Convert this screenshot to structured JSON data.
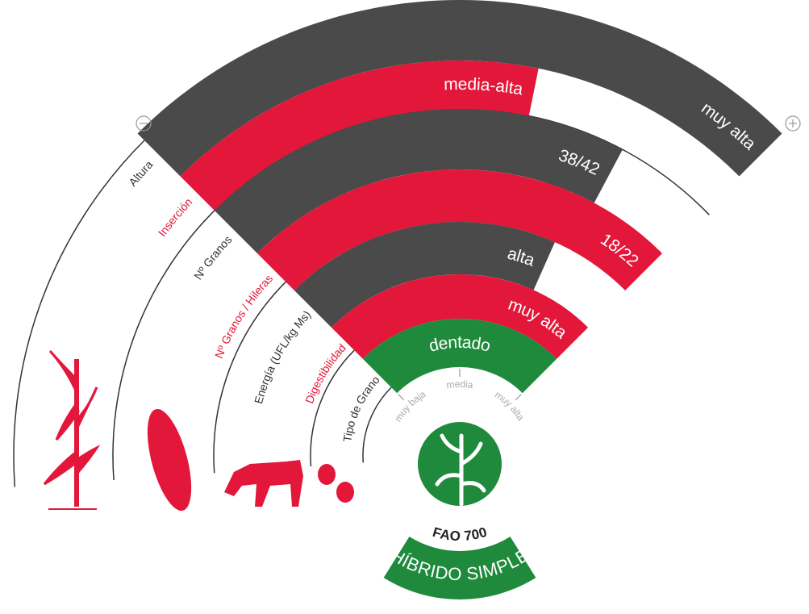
{
  "rings": [
    {
      "label": "Altura",
      "value": "muy alta"
    },
    {
      "label": "Inserción",
      "value": "media-alta"
    },
    {
      "label": "Nº Granos",
      "value": "38/42"
    },
    {
      "label": "Nº Granos / Hileras",
      "value": "18/22"
    },
    {
      "label": "Energía (UFL/kg Ms)",
      "value": "alta"
    },
    {
      "label": "Digestibilidad",
      "value": "muy alta"
    },
    {
      "label": "Tipo de Grano",
      "value": "dentado"
    }
  ],
  "scale": [
    "muy baja",
    "media",
    "muy alta"
  ],
  "badge": {
    "fao": "FAO 700",
    "type": "HÍBRIDO SIMPLE"
  }
}
